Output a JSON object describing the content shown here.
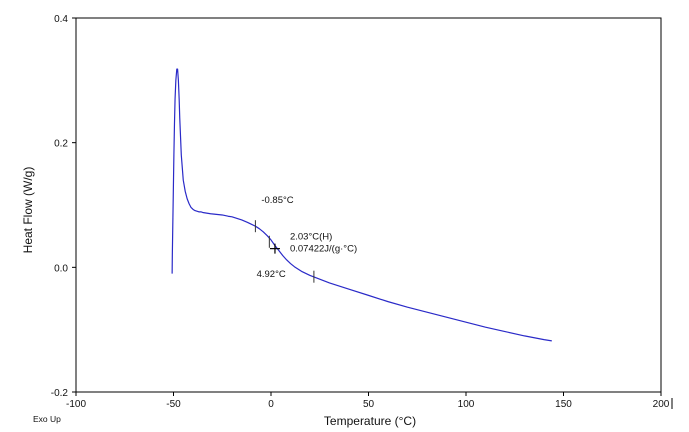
{
  "chart_data": {
    "type": "line",
    "title": "",
    "xlabel": "Temperature (°C)",
    "ylabel": "Heat Flow (W/g)",
    "xlim": [
      -100,
      200
    ],
    "ylim": [
      -0.2,
      0.4
    ],
    "x_ticks": [
      -100,
      -50,
      0,
      50,
      100,
      150,
      200
    ],
    "x_tick_labels": [
      "-100",
      "-50",
      "0",
      "50",
      "100",
      "150",
      "200"
    ],
    "y_ticks": [
      -0.2,
      0.0,
      0.2,
      0.4
    ],
    "y_tick_labels": [
      "-0.2",
      "0.0",
      "0.2",
      "0.4"
    ],
    "grid": false,
    "corner_label": "Exo Up",
    "series": [
      {
        "name": "Heat Flow",
        "color": "#2a2ac8",
        "x": [
          -50.7,
          -50.6,
          -50.4,
          -50.1,
          -49.8,
          -49.5,
          -49.2,
          -48.8,
          -48.3,
          -47.9,
          -47.5,
          -47.1,
          -46.8,
          -46.4,
          -46.0,
          -45.5,
          -45.0,
          -44.0,
          -43.0,
          -42.0,
          -41.0,
          -40.0,
          -39.0,
          -38.0,
          -37.0,
          -36.0,
          -35.0,
          -33.0,
          -31.0,
          -28.0,
          -25.0,
          -22.0,
          -20.0,
          -18.0,
          -15.0,
          -12.0,
          -10.0,
          -8.0,
          -6.0,
          -4.0,
          -2.0,
          0.0,
          2.0,
          4.0,
          6.0,
          8.0,
          10.0,
          12.0,
          14.0,
          16.0,
          18.0,
          20.0,
          25.0,
          30.0,
          40.0,
          50.0,
          60.0,
          70.0,
          80.0,
          90.0,
          100.0,
          110.0,
          120.0,
          130.0,
          140.0,
          144.0
        ],
        "values": [
          -0.01,
          0.02,
          0.06,
          0.12,
          0.18,
          0.23,
          0.27,
          0.3,
          0.318,
          0.318,
          0.3,
          0.27,
          0.24,
          0.21,
          0.18,
          0.16,
          0.14,
          0.122,
          0.11,
          0.102,
          0.096,
          0.093,
          0.091,
          0.09,
          0.089,
          0.089,
          0.088,
          0.087,
          0.086,
          0.085,
          0.084,
          0.082,
          0.081,
          0.079,
          0.076,
          0.072,
          0.069,
          0.066,
          0.062,
          0.057,
          0.051,
          0.044,
          0.035,
          0.027,
          0.019,
          0.012,
          0.006,
          0.001,
          -0.003,
          -0.007,
          -0.01,
          -0.013,
          -0.019,
          -0.025,
          -0.035,
          -0.045,
          -0.055,
          -0.064,
          -0.072,
          -0.08,
          -0.088,
          -0.096,
          -0.103,
          -0.11,
          -0.116,
          -0.118
        ]
      }
    ],
    "annotations": [
      {
        "name": "onset",
        "label": "-0.85°C",
        "x": -0.85,
        "y": 0.055
      },
      {
        "name": "midpoint",
        "label": "2.03°C(H)",
        "x": 2.03,
        "y": 0.03
      },
      {
        "name": "delta-cp",
        "label": "0.07422J/(g·°C)",
        "x": 2.03,
        "y": 0.03
      },
      {
        "name": "end",
        "label": "4.92°C",
        "x": 4.92,
        "y": 0.02
      }
    ],
    "markers": [
      {
        "name": "onset-marker",
        "x": -8.0,
        "y": 0.066
      },
      {
        "name": "glass-transition-start-marker",
        "x": -0.85,
        "y": 0.041
      },
      {
        "name": "end-marker",
        "x": 22.0,
        "y": -0.015
      }
    ],
    "crosshair": {
      "x": 2.03,
      "y": 0.03
    }
  }
}
